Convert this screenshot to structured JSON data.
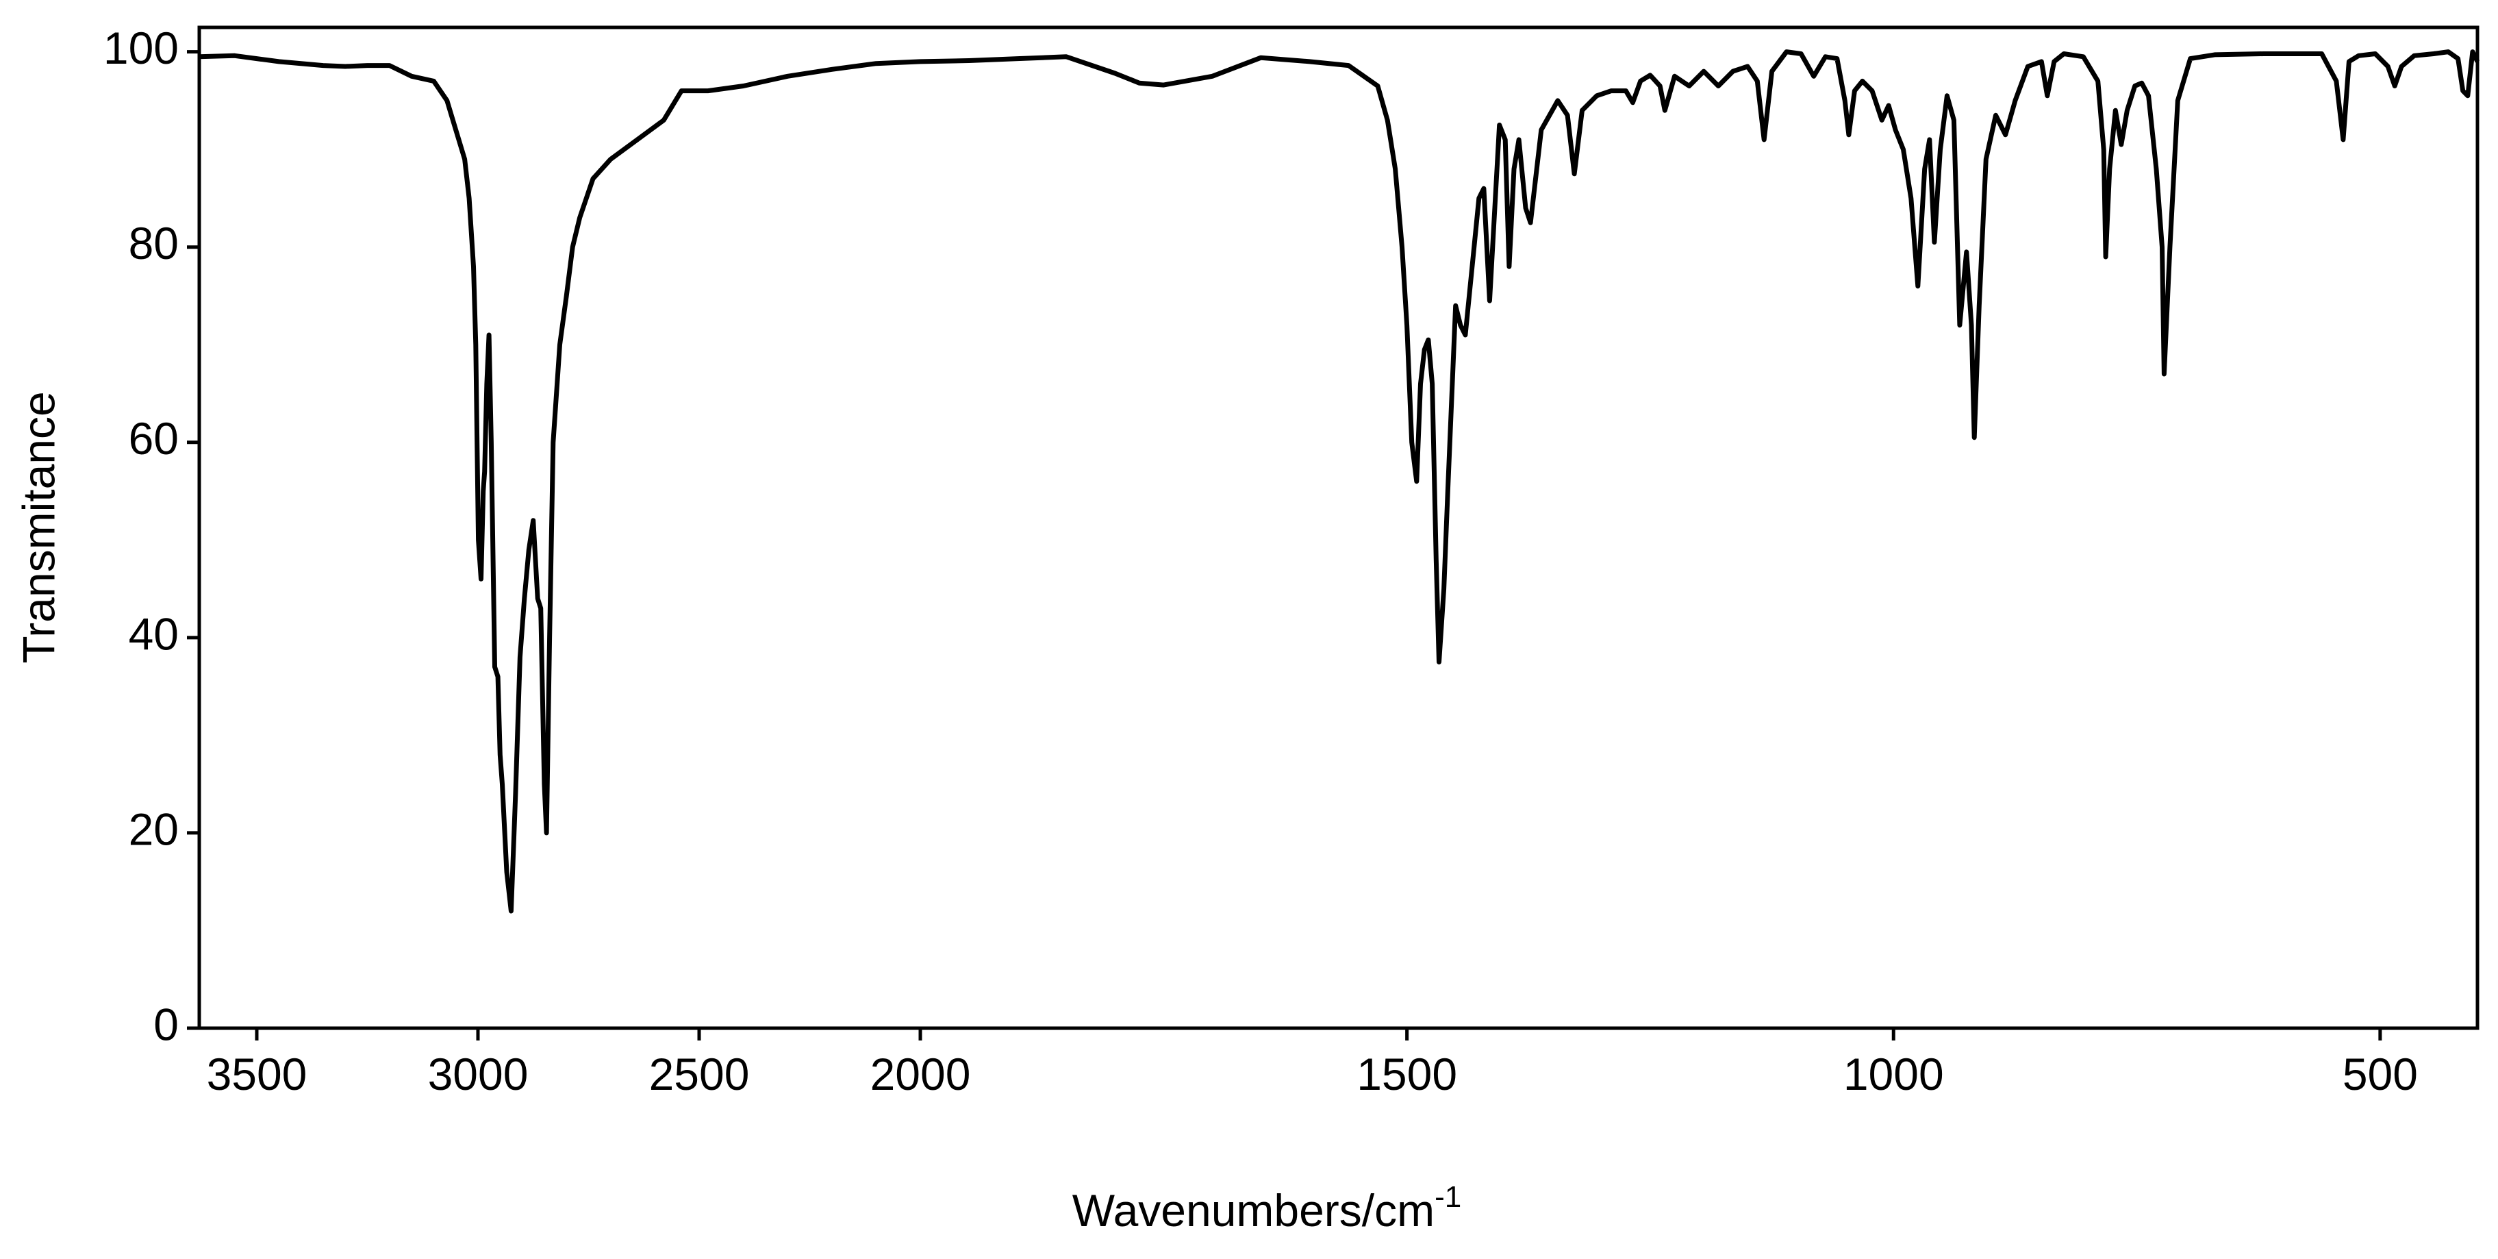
{
  "chart_data": {
    "type": "line",
    "ylabel": "Transmitance",
    "xlabel": {
      "text": "Wavenumbers/cm",
      "superscript": "-1"
    },
    "xlim": [
      3630,
      400
    ],
    "ylim": [
      0,
      102.5
    ],
    "xticks": [
      3500,
      3000,
      2500,
      2000,
      1500,
      1000,
      500
    ],
    "yticks": [
      0,
      20,
      40,
      60,
      80,
      100
    ],
    "x_scale_break": 2000,
    "x_expansion_below_break": 2.2,
    "color": "#000000",
    "x": [
      3630,
      3550,
      3450,
      3350,
      3300,
      3250,
      3200,
      3150,
      3100,
      3070,
      3050,
      3030,
      3020,
      3010,
      3005,
      2999,
      2993,
      2988,
      2985,
      2980,
      2975,
      2970,
      2962,
      2955,
      2950,
      2945,
      2935,
      2925,
      2915,
      2905,
      2895,
      2885,
      2875,
      2865,
      2858,
      2850,
      2845,
      2838,
      2830,
      2815,
      2800,
      2786,
      2770,
      2740,
      2700,
      2640,
      2580,
      2540,
      2480,
      2400,
      2300,
      2200,
      2100,
      2000,
      1950,
      1900,
      1850,
      1800,
      1775,
      1750,
      1700,
      1650,
      1600,
      1560,
      1530,
      1520,
      1512,
      1505,
      1500,
      1495,
      1490,
      1486,
      1482,
      1478,
      1474,
      1470,
      1467,
      1462,
      1458,
      1450,
      1445,
      1440,
      1432,
      1426,
      1421,
      1415,
      1405,
      1399,
      1395,
      1390,
      1385,
      1378,
      1373,
      1362,
      1345,
      1335,
      1328,
      1320,
      1305,
      1290,
      1275,
      1268,
      1260,
      1250,
      1240,
      1235,
      1225,
      1210,
      1195,
      1180,
      1165,
      1150,
      1140,
      1133,
      1125,
      1110,
      1095,
      1082,
      1070,
      1058,
      1050,
      1046,
      1040,
      1032,
      1022,
      1012,
      1005,
      998,
      990,
      982,
      975,
      968,
      963,
      958,
      952,
      945,
      938,
      932,
      925,
      920,
      917,
      912,
      905,
      895,
      885,
      875,
      862,
      848,
      842,
      835,
      825,
      805,
      790,
      784,
      782,
      778,
      772,
      766,
      760,
      752,
      745,
      738,
      730,
      724,
      722,
      716,
      708,
      695,
      670,
      620,
      560,
      545,
      538,
      532,
      522,
      505,
      492,
      485,
      478,
      465,
      445,
      430,
      420,
      415,
      410,
      405,
      400
    ],
    "values": [
      99.5,
      99.6,
      99.0,
      98.6,
      98.5,
      98.6,
      98.6,
      97.5,
      97,
      95,
      92,
      89,
      85,
      78,
      70,
      50,
      46,
      55,
      57,
      66,
      71,
      60,
      37,
      36,
      28,
      25,
      16,
      12,
      24,
      38,
      44,
      49,
      52,
      44,
      43,
      25,
      20,
      40,
      60,
      70,
      75,
      80,
      83,
      87,
      89,
      91,
      93,
      96,
      96,
      96.5,
      97.5,
      98.2,
      98.8,
      99,
      99.1,
      99.3,
      99.5,
      97.8,
      96.8,
      96.6,
      97.5,
      99.4,
      99,
      98.6,
      96.5,
      93,
      88,
      80,
      72,
      60,
      56,
      66,
      69.5,
      70.5,
      66,
      48,
      37.5,
      45,
      55,
      74,
      72,
      71,
      79,
      85,
      86,
      74.5,
      92.5,
      91,
      78,
      88,
      91,
      84,
      82.5,
      92,
      95,
      93.5,
      87.5,
      94,
      95.5,
      96,
      96,
      94.8,
      97,
      97.6,
      96.5,
      94,
      97.5,
      96.5,
      98,
      96.5,
      98,
      98.5,
      97,
      91,
      98,
      100,
      99.8,
      97.5,
      99.5,
      99.3,
      95,
      91.5,
      96,
      97,
      96,
      93,
      94.5,
      92,
      90,
      85,
      76,
      88,
      91,
      80.5,
      90,
      95.5,
      93,
      72,
      79.5,
      72,
      60.5,
      74,
      89,
      93.5,
      91.5,
      95,
      98.5,
      99,
      95.5,
      99,
      99.8,
      99.5,
      97,
      90,
      79,
      88,
      94,
      90.5,
      94,
      96.5,
      96.8,
      95.5,
      88,
      80,
      67,
      80,
      95,
      99.3,
      99.7,
      99.8,
      99.8,
      97,
      91,
      99,
      99.6,
      99.8,
      98.5,
      96.5,
      98.5,
      99.6,
      99.8,
      100,
      99.3,
      96,
      95.5,
      100,
      99
    ]
  }
}
